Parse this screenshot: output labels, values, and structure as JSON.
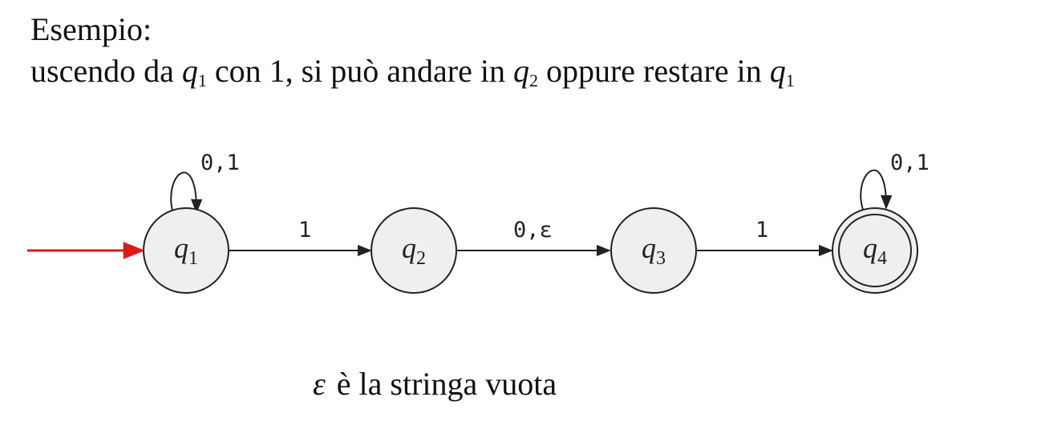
{
  "heading": {
    "line1": "Esempio:",
    "line2": {
      "t1": "uscendo da ",
      "q1": "q",
      "q1_sub": "1",
      "t2": " con 1, si può andare in  ",
      "q2": "q",
      "q2_sub": "2",
      "t3": " oppure restare in ",
      "q3": "q",
      "q3_sub": "1"
    }
  },
  "diagram": {
    "states": [
      {
        "id": "q1",
        "label": "q",
        "sub": "1",
        "start": true,
        "accept": false
      },
      {
        "id": "q2",
        "label": "q",
        "sub": "2",
        "start": false,
        "accept": false
      },
      {
        "id": "q3",
        "label": "q",
        "sub": "3",
        "start": false,
        "accept": false
      },
      {
        "id": "q4",
        "label": "q",
        "sub": "4",
        "start": false,
        "accept": true
      }
    ],
    "transitions": [
      {
        "from": "q1",
        "to": "q1",
        "label": "0,1"
      },
      {
        "from": "q1",
        "to": "q2",
        "label": "1"
      },
      {
        "from": "q2",
        "to": "q3",
        "label": "0,ε"
      },
      {
        "from": "q3",
        "to": "q4",
        "label": "1"
      },
      {
        "from": "q4",
        "to": "q4",
        "label": "0,1"
      }
    ],
    "colors": {
      "state_fill": "#efefef",
      "stroke": "#222222",
      "start_arrow": "#e01818"
    }
  },
  "footer": {
    "epsilon": "ε",
    "text": "è la stringa vuota"
  }
}
